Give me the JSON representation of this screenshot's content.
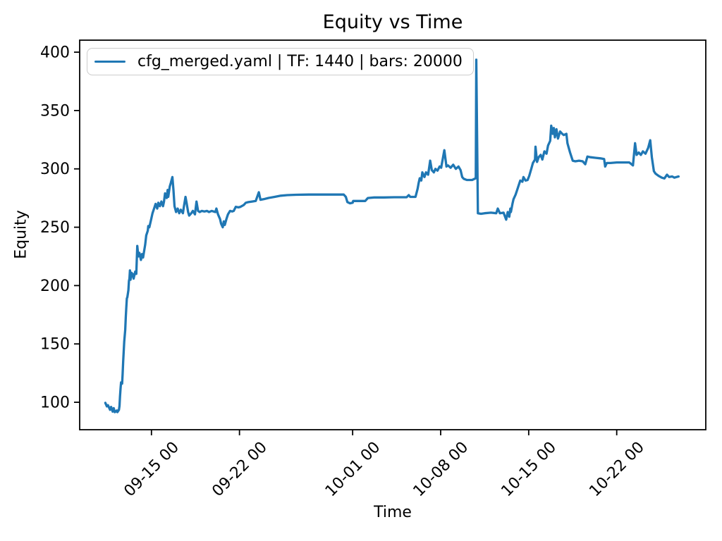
{
  "figure": {
    "background": "#ffffff",
    "axis_color": "#000000"
  },
  "chart_data": {
    "type": "line",
    "title": "Equity vs Time",
    "xlabel": "Time",
    "ylabel": "Equity",
    "grid": false,
    "legend_position": "upper left",
    "line_color": "#1f77b4",
    "x_tick_labels": [
      "09-15 00",
      "09-22 00",
      "10-01 00",
      "10-08 00",
      "10-15 00",
      "10-22 00"
    ],
    "y_ticks": [
      100,
      150,
      200,
      250,
      300,
      350,
      400
    ],
    "xlim": [
      "09-09 07",
      "10-29 02"
    ],
    "ylim": [
      76.5,
      410.3
    ],
    "series": [
      {
        "name": "cfg_merged.yaml | TF: 1440 | bars: 20000",
        "points": [
          [
            "09-11 08",
            99.5
          ],
          [
            "09-11 11",
            96.5
          ],
          [
            "09-11 13",
            97.5
          ],
          [
            "09-11 17",
            93.5
          ],
          [
            "09-11 19",
            96
          ],
          [
            "09-11 22",
            92
          ],
          [
            "09-12 00",
            95
          ],
          [
            "09-12 02",
            91.5
          ],
          [
            "09-12 06",
            93
          ],
          [
            "09-12 07",
            91.5
          ],
          [
            "09-12 10",
            93.5
          ],
          [
            "09-12 11",
            97
          ],
          [
            "09-12 12",
            105
          ],
          [
            "09-12 13",
            112
          ],
          [
            "09-12 14",
            117
          ],
          [
            "09-12 16",
            116
          ],
          [
            "09-12 17",
            124
          ],
          [
            "09-12 18",
            135
          ],
          [
            "09-12 19",
            143
          ],
          [
            "09-12 20",
            152
          ],
          [
            "09-12 22",
            162
          ],
          [
            "09-12 23",
            173
          ],
          [
            "09-13 00",
            181
          ],
          [
            "09-13 01",
            189
          ],
          [
            "09-13 02",
            190
          ],
          [
            "09-13 04",
            196
          ],
          [
            "09-13 05",
            204
          ],
          [
            "09-13 06",
            206
          ],
          [
            "09-13 07",
            213
          ],
          [
            "09-13 08",
            205
          ],
          [
            "09-13 10",
            211
          ],
          [
            "09-13 11",
            208
          ],
          [
            "09-13 12",
            210
          ],
          [
            "09-13 14",
            206
          ],
          [
            "09-13 17",
            212
          ],
          [
            "09-13 19",
            210
          ],
          [
            "09-13 21",
            234
          ],
          [
            "09-13 23",
            225
          ],
          [
            "09-14 01",
            228
          ],
          [
            "09-14 04",
            222
          ],
          [
            "09-14 06",
            227
          ],
          [
            "09-14 08",
            224
          ],
          [
            "09-14 12",
            235
          ],
          [
            "09-14 14",
            243
          ],
          [
            "09-14 17",
            247
          ],
          [
            "09-14 18",
            251
          ],
          [
            "09-14 20",
            250
          ],
          [
            "09-14 23",
            256
          ],
          [
            "09-15 02",
            262
          ],
          [
            "09-15 05",
            266
          ],
          [
            "09-15 08",
            270
          ],
          [
            "09-15 11",
            266
          ],
          [
            "09-15 13",
            271
          ],
          [
            "09-15 16",
            268
          ],
          [
            "09-15 19",
            272
          ],
          [
            "09-15 22",
            268
          ],
          [
            "09-16 00",
            272
          ],
          [
            "09-16 02",
            279
          ],
          [
            "09-16 05",
            275
          ],
          [
            "09-16 07",
            282
          ],
          [
            "09-16 08",
            276
          ],
          [
            "09-16 11",
            285
          ],
          [
            "09-16 13",
            288
          ],
          [
            "09-16 16",
            293
          ],
          [
            "09-16 18",
            282
          ],
          [
            "09-16 20",
            268
          ],
          [
            "09-16 23",
            263
          ],
          [
            "09-17 02",
            266
          ],
          [
            "09-17 05",
            262
          ],
          [
            "09-17 08",
            265
          ],
          [
            "09-17 12",
            262
          ],
          [
            "09-17 14",
            268
          ],
          [
            "09-17 17",
            276
          ],
          [
            "09-17 19",
            271
          ],
          [
            "09-17 22",
            263
          ],
          [
            "09-18 00",
            260
          ],
          [
            "09-18 04",
            262
          ],
          [
            "09-18 07",
            264
          ],
          [
            "09-18 11",
            261
          ],
          [
            "09-18 14",
            272
          ],
          [
            "09-18 17",
            264
          ],
          [
            "09-18 20",
            263
          ],
          [
            "09-19 00",
            264
          ],
          [
            "09-19 05",
            263.5
          ],
          [
            "09-19 10",
            264
          ],
          [
            "09-19 14",
            263
          ],
          [
            "09-19 19",
            264
          ],
          [
            "09-20 02",
            263
          ],
          [
            "09-20 04",
            266
          ],
          [
            "09-20 07",
            261
          ],
          [
            "09-20 11",
            257
          ],
          [
            "09-20 13",
            253
          ],
          [
            "09-20 16",
            250
          ],
          [
            "09-20 18",
            255
          ],
          [
            "09-20 20",
            252
          ],
          [
            "09-20 23",
            257
          ],
          [
            "09-21 02",
            261
          ],
          [
            "09-21 06",
            264
          ],
          [
            "09-21 10",
            263.5
          ],
          [
            "09-21 13",
            264
          ],
          [
            "09-21 17",
            267.5
          ],
          [
            "09-21 22",
            267
          ],
          [
            "09-22 02",
            267.5
          ],
          [
            "09-22 08",
            269
          ],
          [
            "09-22 12",
            271
          ],
          [
            "09-22 17",
            271.5
          ],
          [
            "09-23 00",
            272
          ],
          [
            "09-23 07",
            272.5
          ],
          [
            "09-23 13",
            280
          ],
          [
            "09-23 16",
            273.5
          ],
          [
            "09-23 22",
            274
          ],
          [
            "09-24 07",
            275
          ],
          [
            "09-24 19",
            276
          ],
          [
            "09-25 07",
            277
          ],
          [
            "09-25 19",
            277.5
          ],
          [
            "09-26 12",
            277.8
          ],
          [
            "09-27 12",
            278
          ],
          [
            "09-28 12",
            278
          ],
          [
            "09-29 12",
            278
          ],
          [
            "09-30 07",
            278
          ],
          [
            "09-30 11",
            276
          ],
          [
            "09-30 14",
            271.5
          ],
          [
            "09-30 19",
            270.5
          ],
          [
            "10-01 00",
            271
          ],
          [
            "10-01 01",
            272.5
          ],
          [
            "10-01 12",
            272.5
          ],
          [
            "10-02 00",
            272.5
          ],
          [
            "10-02 05",
            275
          ],
          [
            "10-02 17",
            275.5
          ],
          [
            "10-03 12",
            275.5
          ],
          [
            "10-04 07",
            275.7
          ],
          [
            "10-05 07",
            275.7
          ],
          [
            "10-05 11",
            277.5
          ],
          [
            "10-05 14",
            276
          ],
          [
            "10-06 00",
            276
          ],
          [
            "10-06 04",
            283
          ],
          [
            "10-06 06",
            288
          ],
          [
            "10-06 08",
            292
          ],
          [
            "10-06 11",
            290
          ],
          [
            "10-06 13",
            297
          ],
          [
            "10-06 17",
            293
          ],
          [
            "10-06 20",
            297
          ],
          [
            "10-07 00",
            295
          ],
          [
            "10-07 04",
            307
          ],
          [
            "10-07 07",
            299
          ],
          [
            "10-07 11",
            297
          ],
          [
            "10-07 14",
            300
          ],
          [
            "10-07 18",
            298.5
          ],
          [
            "10-07 22",
            302
          ],
          [
            "10-08 01",
            301
          ],
          [
            "10-08 07",
            316
          ],
          [
            "10-08 11",
            302
          ],
          [
            "10-08 14",
            303
          ],
          [
            "10-08 19",
            301
          ],
          [
            "10-09 00",
            303.5
          ],
          [
            "10-09 05",
            300
          ],
          [
            "10-09 10",
            302
          ],
          [
            "10-09 14",
            299
          ],
          [
            "10-09 17",
            293
          ],
          [
            "10-09 20",
            291.5
          ],
          [
            "10-10 02",
            290.5
          ],
          [
            "10-10 12",
            290.5
          ],
          [
            "10-10 19",
            292
          ],
          [
            "10-10 20",
            393.5
          ],
          [
            "10-10 23",
            262
          ],
          [
            "10-11 05",
            261.5
          ],
          [
            "10-11 12",
            262
          ],
          [
            "10-12 00",
            262.5
          ],
          [
            "10-12 10",
            262
          ],
          [
            "10-12 13",
            266
          ],
          [
            "10-12 17",
            262
          ],
          [
            "10-13 00",
            262.5
          ],
          [
            "10-13 05",
            256.5
          ],
          [
            "10-13 08",
            263
          ],
          [
            "10-13 11",
            259
          ],
          [
            "10-13 13",
            266
          ],
          [
            "10-13 14",
            263
          ],
          [
            "10-13 17",
            270
          ],
          [
            "10-13 19",
            274
          ],
          [
            "10-13 23",
            278
          ],
          [
            "10-14 02",
            282
          ],
          [
            "10-14 05",
            286
          ],
          [
            "10-14 08",
            290
          ],
          [
            "10-14 12",
            289
          ],
          [
            "10-14 14",
            293
          ],
          [
            "10-14 18",
            290
          ],
          [
            "10-14 22",
            290.5
          ],
          [
            "10-15 01",
            294
          ],
          [
            "10-15 05",
            300
          ],
          [
            "10-15 08",
            305
          ],
          [
            "10-15 12",
            308
          ],
          [
            "10-15 13",
            319
          ],
          [
            "10-15 16",
            306
          ],
          [
            "10-15 19",
            310
          ],
          [
            "10-15 23",
            312
          ],
          [
            "10-16 02",
            308
          ],
          [
            "10-16 06",
            315
          ],
          [
            "10-16 10",
            313
          ],
          [
            "10-16 13",
            320
          ],
          [
            "10-16 17",
            324
          ],
          [
            "10-16 19",
            337
          ],
          [
            "10-16 22",
            330
          ],
          [
            "10-17 00",
            335
          ],
          [
            "10-17 02",
            327
          ],
          [
            "10-17 05",
            334
          ],
          [
            "10-17 08",
            326
          ],
          [
            "10-17 12",
            332
          ],
          [
            "10-17 16",
            330
          ],
          [
            "10-17 19",
            329
          ],
          [
            "10-18 00",
            330
          ],
          [
            "10-18 02",
            322
          ],
          [
            "10-18 07",
            314
          ],
          [
            "10-18 12",
            307
          ],
          [
            "10-18 17",
            306.5
          ],
          [
            "10-19 00",
            307
          ],
          [
            "10-19 07",
            306.5
          ],
          [
            "10-19 12",
            304
          ],
          [
            "10-19 16",
            310.5
          ],
          [
            "10-19 22",
            310
          ],
          [
            "10-20 07",
            309.5
          ],
          [
            "10-20 17",
            309
          ],
          [
            "10-21 00",
            308.5
          ],
          [
            "10-21 02",
            302
          ],
          [
            "10-21 05",
            305
          ],
          [
            "10-21 12",
            305
          ],
          [
            "10-22 00",
            305.5
          ],
          [
            "10-22 12",
            305.5
          ],
          [
            "10-23 00",
            305.5
          ],
          [
            "10-23 07",
            303
          ],
          [
            "10-23 11",
            322
          ],
          [
            "10-23 14",
            312
          ],
          [
            "10-23 18",
            314
          ],
          [
            "10-23 22",
            312
          ],
          [
            "10-24 02",
            315
          ],
          [
            "10-24 07",
            313
          ],
          [
            "10-24 12",
            318
          ],
          [
            "10-24 16",
            324.5
          ],
          [
            "10-24 19",
            310
          ],
          [
            "10-24 23",
            298
          ],
          [
            "10-25 02",
            296
          ],
          [
            "10-25 08",
            294
          ],
          [
            "10-25 14",
            292.5
          ],
          [
            "10-25 19",
            291.8
          ],
          [
            "10-26 00",
            295
          ],
          [
            "10-26 04",
            293
          ],
          [
            "10-26 10",
            293.5
          ],
          [
            "10-26 14",
            292.5
          ],
          [
            "10-26 18",
            293
          ],
          [
            "10-26 22",
            293.5
          ]
        ]
      }
    ]
  }
}
